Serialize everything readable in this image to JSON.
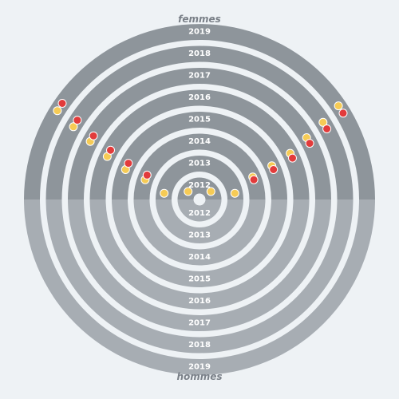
{
  "chart_data": {
    "type": "radial-dot",
    "top_group": "femmes",
    "bottom_group": "hommes",
    "years": [
      "2012",
      "2013",
      "2014",
      "2015",
      "2016",
      "2017",
      "2018",
      "2019"
    ],
    "colors": {
      "top_ring": "#8e959b",
      "bottom_ring": "#a7adb3",
      "background": "#eef2f5",
      "yellow_dot": "#f6cb55",
      "red_dot": "#e23b3b",
      "dot_stroke": "#ffffff"
    },
    "dots": [
      {
        "year": "2012",
        "color": "yellow",
        "angle_deg": 215
      },
      {
        "year": "2012",
        "color": "yellow",
        "angle_deg": 325
      },
      {
        "year": "2013",
        "color": "yellow",
        "angle_deg": 190
      },
      {
        "year": "2013",
        "color": "yellow",
        "angle_deg": 350
      },
      {
        "year": "2014",
        "color": "yellow",
        "angle_deg": 200
      },
      {
        "year": "2014",
        "color": "red",
        "angle_deg": 205
      },
      {
        "year": "2014",
        "color": "yellow",
        "angle_deg": 337
      },
      {
        "year": "2014",
        "color": "red",
        "angle_deg": 340
      },
      {
        "year": "2015",
        "color": "yellow",
        "angle_deg": 202
      },
      {
        "year": "2015",
        "color": "red",
        "angle_deg": 207
      },
      {
        "year": "2015",
        "color": "yellow",
        "angle_deg": 335
      },
      {
        "year": "2015",
        "color": "red",
        "angle_deg": 338
      },
      {
        "year": "2016",
        "color": "yellow",
        "angle_deg": 205
      },
      {
        "year": "2016",
        "color": "red",
        "angle_deg": 209
      },
      {
        "year": "2016",
        "color": "yellow",
        "angle_deg": 333
      },
      {
        "year": "2016",
        "color": "red",
        "angle_deg": 336
      },
      {
        "year": "2017",
        "color": "yellow",
        "angle_deg": 208
      },
      {
        "year": "2017",
        "color": "red",
        "angle_deg": 211
      },
      {
        "year": "2017",
        "color": "yellow",
        "angle_deg": 330
      },
      {
        "year": "2017",
        "color": "red",
        "angle_deg": 333
      },
      {
        "year": "2018",
        "color": "yellow",
        "angle_deg": 210
      },
      {
        "year": "2018",
        "color": "red",
        "angle_deg": 213
      },
      {
        "year": "2018",
        "color": "yellow",
        "angle_deg": 328
      },
      {
        "year": "2018",
        "color": "red",
        "angle_deg": 331
      },
      {
        "year": "2019",
        "color": "yellow",
        "angle_deg": 212
      },
      {
        "year": "2019",
        "color": "red",
        "angle_deg": 215
      },
      {
        "year": "2019",
        "color": "yellow",
        "angle_deg": 326
      },
      {
        "year": "2019",
        "color": "red",
        "angle_deg": 329
      }
    ]
  }
}
